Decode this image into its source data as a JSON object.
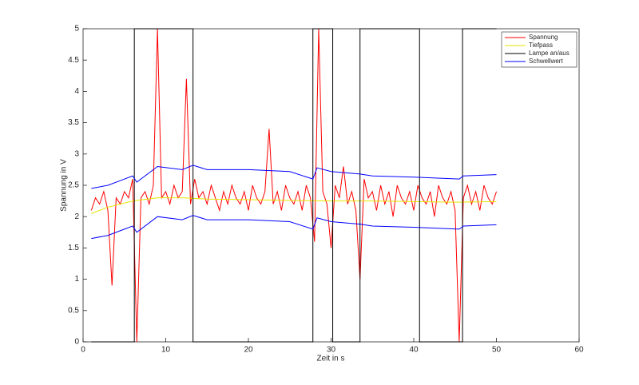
{
  "chart_data": {
    "type": "line",
    "xlabel": "Zeit in s",
    "ylabel": "Spannung  in V",
    "xlim": [
      0,
      60
    ],
    "xticks": [
      0,
      10,
      20,
      30,
      40,
      50,
      60
    ],
    "ylim": [
      0,
      5
    ],
    "yticks": [
      0,
      0.5,
      1,
      1.5,
      2,
      2.5,
      3,
      3.5,
      4,
      4.5,
      5
    ],
    "grid": false,
    "legend": "northeast",
    "x": [
      1,
      1.5,
      2,
      2.5,
      3,
      3.5,
      4,
      4.5,
      5,
      5.5,
      6,
      6.5,
      7,
      7.5,
      8,
      8.5,
      9,
      9.5,
      10,
      10.5,
      11,
      11.5,
      12,
      12.5,
      13,
      13.5,
      14,
      14.5,
      15,
      15.5,
      16,
      16.5,
      17,
      17.5,
      18,
      18.5,
      19,
      19.5,
      20,
      20.5,
      21,
      21.5,
      22,
      22.5,
      23,
      23.5,
      24,
      24.5,
      25,
      25.5,
      26,
      26.5,
      27,
      27.5,
      28,
      28.5,
      29,
      29.5,
      30,
      30.5,
      31,
      31.5,
      32,
      32.5,
      33,
      33.5,
      34,
      34.5,
      35,
      35.5,
      36,
      36.5,
      37,
      37.5,
      38,
      38.5,
      39,
      39.5,
      40,
      40.5,
      41,
      41.5,
      42,
      42.5,
      43,
      43.5,
      44,
      44.5,
      45,
      45.5,
      46,
      46.5,
      47,
      47.5,
      48,
      48.5,
      49,
      49.5,
      50
    ],
    "series": [
      {
        "name": "Spannung",
        "color": "#ff0000",
        "values": [
          2.1,
          2.3,
          2.2,
          2.4,
          2.1,
          0.9,
          2.3,
          2.2,
          2.4,
          2.3,
          2.6,
          0,
          2.3,
          2.4,
          2.2,
          2.5,
          5,
          2.3,
          2.4,
          2.2,
          2.5,
          2.3,
          2.4,
          4.2,
          2.2,
          2.6,
          2.3,
          2.4,
          2.2,
          2.5,
          2.3,
          2.1,
          2.4,
          2.2,
          2.5,
          2.3,
          2.2,
          2.4,
          2.1,
          2.5,
          2.3,
          2.2,
          2.4,
          3.4,
          2.2,
          2.4,
          2.1,
          2.5,
          2.3,
          2.2,
          2.4,
          2.1,
          2.5,
          2.3,
          1.6,
          5,
          2.4,
          2.2,
          1.5,
          2.5,
          2.3,
          2.8,
          2.2,
          2.4,
          2.1,
          1.0,
          2.6,
          2.3,
          2.4,
          2.1,
          2.5,
          2.2,
          2.4,
          2.0,
          2.5,
          2.3,
          2.2,
          2.4,
          2.1,
          2.5,
          2.3,
          2.2,
          2.4,
          2.0,
          2.5,
          2.3,
          2.2,
          2.4,
          2.1,
          0,
          2.3,
          2.5,
          2.2,
          2.4,
          2.1,
          2.5,
          2.3,
          2.2,
          2.4
        ]
      },
      {
        "name": "Tiefpass",
        "color": "#e6e600",
        "x": [
          1,
          3,
          6,
          9,
          12,
          15,
          20,
          25,
          30,
          35,
          40,
          45,
          50
        ],
        "values": [
          2.05,
          2.15,
          2.25,
          2.3,
          2.3,
          2.28,
          2.27,
          2.26,
          2.25,
          2.25,
          2.24,
          2.23,
          2.24
        ]
      },
      {
        "name": "Lampe an/aus",
        "color": "#000000",
        "x": [
          1,
          6.2,
          6.2,
          13.3,
          13.3,
          27.8,
          27.8,
          30.2,
          30.2,
          33.5,
          33.5,
          40.7,
          40.7,
          45.9,
          45.9,
          50
        ],
        "values": [
          0,
          0,
          5,
          5,
          0,
          0,
          5,
          5,
          0,
          0,
          5,
          5,
          0,
          0,
          5,
          5
        ]
      },
      {
        "name": "Schwellwert",
        "color": "#0000ff",
        "x": [
          1,
          3,
          5,
          6,
          6.5,
          9,
          12,
          13.3,
          15,
          20,
          25,
          27.8,
          28.3,
          30,
          33.5,
          35,
          40,
          45.5,
          46,
          50
        ],
        "values": [
          2.45,
          2.5,
          2.6,
          2.65,
          2.55,
          2.8,
          2.75,
          2.82,
          2.75,
          2.75,
          2.72,
          2.6,
          2.78,
          2.72,
          2.68,
          2.65,
          2.63,
          2.6,
          2.65,
          2.67
        ]
      },
      {
        "color": "#0000ff",
        "x": [
          1,
          3,
          5,
          6,
          6.5,
          9,
          12,
          13.3,
          15,
          20,
          25,
          27.8,
          28.3,
          30,
          33.5,
          35,
          40,
          45.5,
          46,
          50
        ],
        "values": [
          1.65,
          1.7,
          1.8,
          1.85,
          1.75,
          2.0,
          1.95,
          2.02,
          1.95,
          1.95,
          1.92,
          1.8,
          1.98,
          1.92,
          1.88,
          1.85,
          1.83,
          1.8,
          1.85,
          1.87
        ]
      }
    ]
  }
}
